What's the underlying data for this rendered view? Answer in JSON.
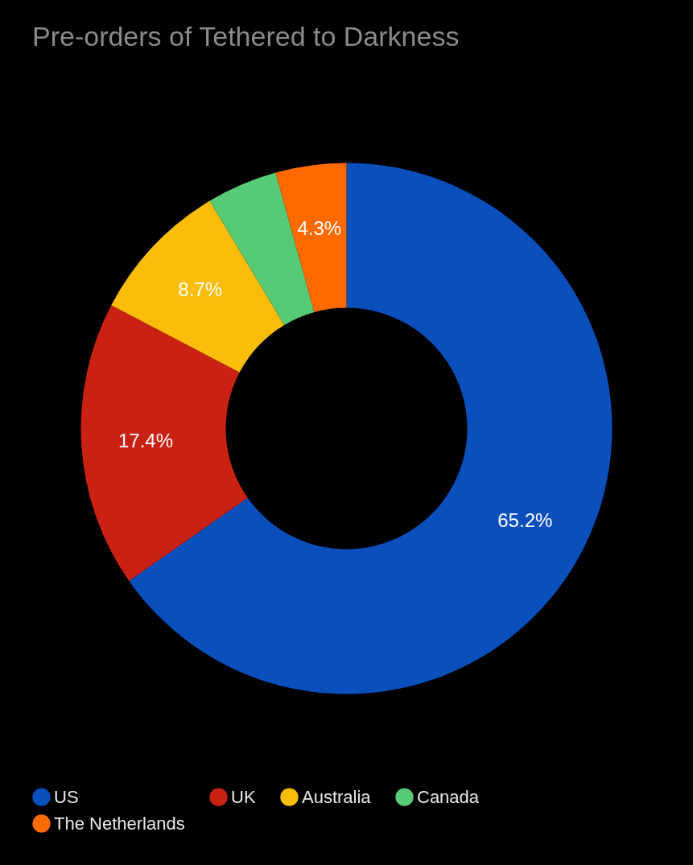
{
  "chart_data": {
    "type": "donut",
    "title": "Pre-orders of Tethered to Darkness",
    "categories": [
      "US",
      "UK",
      "Australia",
      "Canada",
      "The Netherlands"
    ],
    "values": [
      65.2,
      17.4,
      8.7,
      4.3,
      4.3
    ],
    "colors": [
      "#0b4fbd",
      "#c92215",
      "#f9bd0a",
      "#57ca76",
      "#ff6a00"
    ],
    "value_labels": [
      "65.2%",
      "17.4%",
      "8.7%",
      null,
      "4.3%"
    ],
    "legend": "bottom"
  }
}
